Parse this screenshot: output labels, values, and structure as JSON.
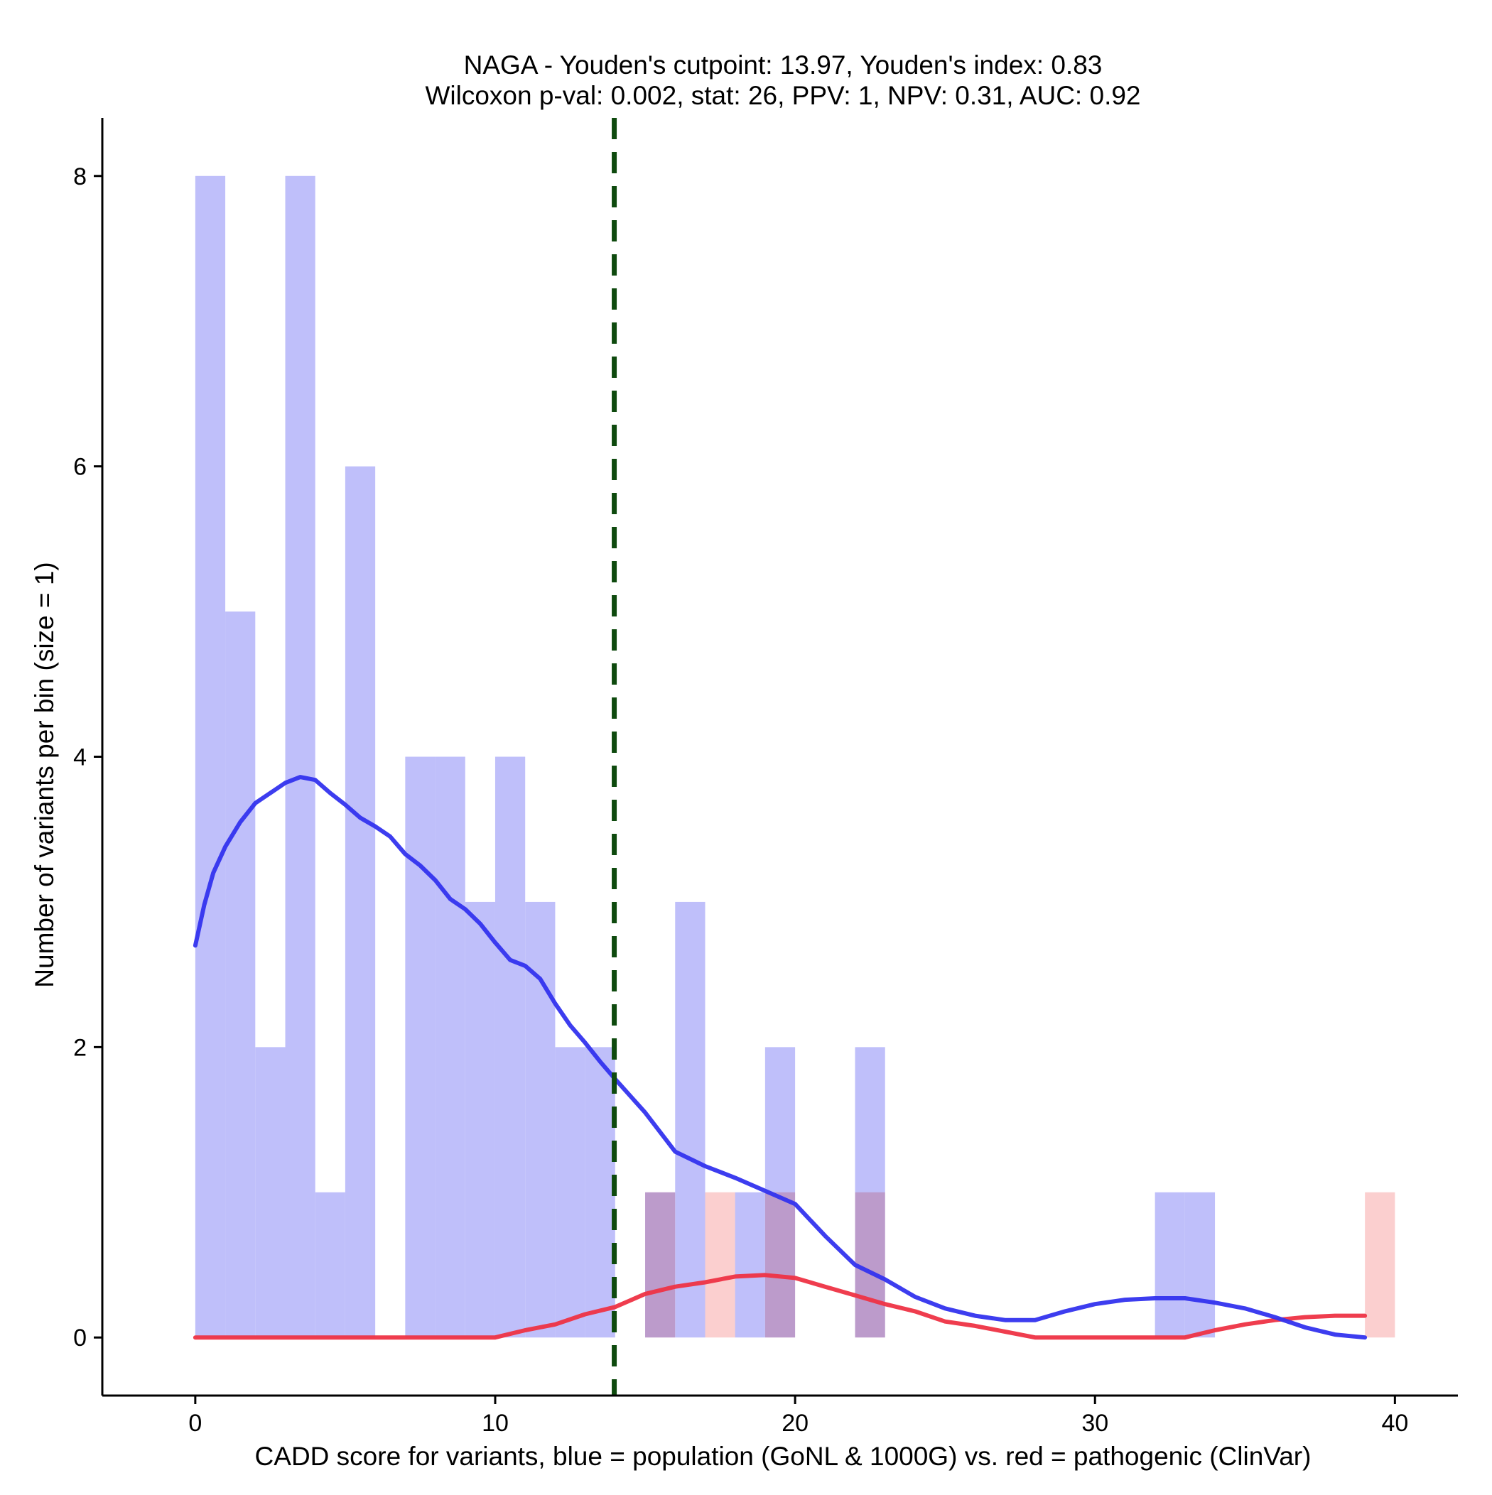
{
  "chart_data": {
    "type": "bar",
    "title": "NAGA - Youden's cutpoint: 13.97, Youden's index: 0.83",
    "subtitle": "Wilcoxon p-val: 0.002, stat: 26, PPV: 1, NPV: 0.31, AUC: 0.92",
    "xlabel": "CADD score for variants, blue = population (GoNL & 1000G) vs. red = pathogenic (ClinVar)",
    "ylabel": "Number of variants per bin (size = 1)",
    "xlim": [
      -3.1,
      42.1
    ],
    "ylim": [
      -0.4,
      8.4
    ],
    "x_ticks": [
      0,
      10,
      20,
      30,
      40
    ],
    "x_tick_labels": [
      "0",
      "10",
      "20",
      "30",
      "40"
    ],
    "y_ticks": [
      0,
      2,
      4,
      6,
      8
    ],
    "y_tick_labels": [
      "0",
      "2",
      "4",
      "6",
      "8"
    ],
    "bin_width": 1,
    "cutpoint": 13.97,
    "colors": {
      "population_bar": "#bfbffa",
      "pathogenic_bar": "#fabfbf",
      "population_line": "#3333ee",
      "pathogenic_line": "#ee3344",
      "cutpoint_line": "#0e4a0e",
      "axis": "#000000"
    },
    "series": [
      {
        "name": "population (GoNL & 1000G)",
        "bins": [
          {
            "start": 0,
            "count": 8
          },
          {
            "start": 1,
            "count": 5
          },
          {
            "start": 2,
            "count": 2
          },
          {
            "start": 3,
            "count": 8
          },
          {
            "start": 4,
            "count": 1
          },
          {
            "start": 5,
            "count": 6
          },
          {
            "start": 7,
            "count": 4
          },
          {
            "start": 8,
            "count": 4
          },
          {
            "start": 9,
            "count": 3
          },
          {
            "start": 10,
            "count": 4
          },
          {
            "start": 11,
            "count": 3
          },
          {
            "start": 12,
            "count": 2
          },
          {
            "start": 13,
            "count": 2
          },
          {
            "start": 15,
            "count": 1
          },
          {
            "start": 16,
            "count": 3
          },
          {
            "start": 18,
            "count": 1
          },
          {
            "start": 19,
            "count": 2
          },
          {
            "start": 22,
            "count": 2
          },
          {
            "start": 32,
            "count": 1
          },
          {
            "start": 33,
            "count": 1
          }
        ],
        "density_curve": {
          "x": [
            0,
            0.3,
            0.6,
            1,
            1.5,
            2,
            2.5,
            3,
            3.5,
            4,
            4.5,
            5,
            5.5,
            6,
            6.5,
            7,
            7.5,
            8,
            8.5,
            9,
            9.5,
            10,
            10.5,
            11,
            11.5,
            12,
            12.5,
            13,
            13.5,
            14,
            15,
            16,
            17,
            18,
            19,
            20,
            21,
            22,
            23,
            24,
            25,
            26,
            27,
            28,
            29,
            30,
            31,
            32,
            33,
            34,
            35,
            36,
            37,
            38,
            39
          ],
          "y": [
            2.7,
            2.98,
            3.2,
            3.38,
            3.55,
            3.68,
            3.75,
            3.82,
            3.86,
            3.84,
            3.75,
            3.67,
            3.58,
            3.52,
            3.45,
            3.33,
            3.25,
            3.15,
            3.02,
            2.95,
            2.85,
            2.72,
            2.6,
            2.56,
            2.47,
            2.3,
            2.15,
            2.03,
            1.9,
            1.78,
            1.55,
            1.28,
            1.18,
            1.1,
            1.01,
            0.92,
            0.7,
            0.5,
            0.4,
            0.28,
            0.2,
            0.15,
            0.12,
            0.12,
            0.18,
            0.23,
            0.26,
            0.27,
            0.27,
            0.24,
            0.2,
            0.14,
            0.07,
            0.02,
            0.0
          ]
        }
      },
      {
        "name": "pathogenic (ClinVar)",
        "bins": [
          {
            "start": 15,
            "count": 1
          },
          {
            "start": 17,
            "count": 1
          },
          {
            "start": 19,
            "count": 1
          },
          {
            "start": 22,
            "count": 1
          },
          {
            "start": 39,
            "count": 1
          }
        ],
        "density_curve": {
          "x": [
            0,
            10,
            11,
            12,
            13,
            14,
            15,
            16,
            17,
            18,
            19,
            20,
            21,
            22,
            23,
            24,
            25,
            26,
            27,
            28,
            30,
            32,
            33,
            34,
            35,
            36,
            37,
            38,
            39
          ],
          "y": [
            0,
            0,
            0.05,
            0.09,
            0.16,
            0.21,
            0.3,
            0.35,
            0.38,
            0.42,
            0.43,
            0.41,
            0.35,
            0.29,
            0.23,
            0.18,
            0.11,
            0.08,
            0.04,
            0.0,
            0.0,
            0.0,
            0.0,
            0.05,
            0.09,
            0.12,
            0.14,
            0.15,
            0.15
          ]
        }
      }
    ]
  }
}
